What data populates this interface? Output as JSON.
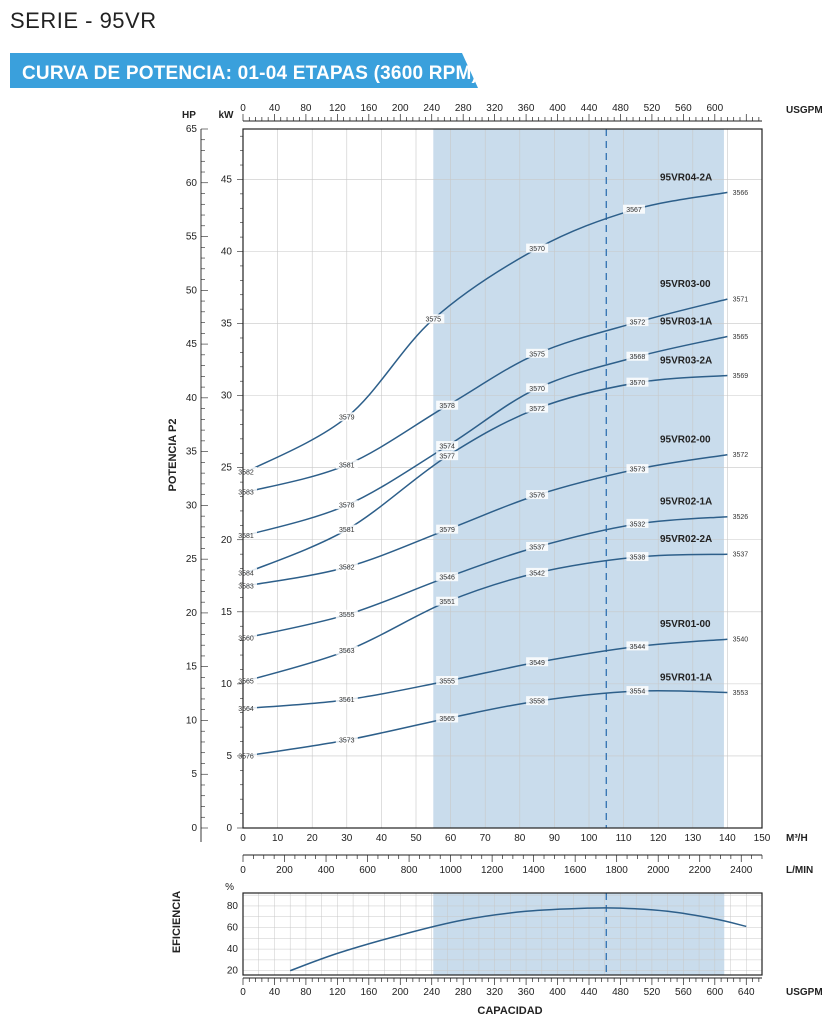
{
  "page": {
    "series_title": "SERIE - 95VR",
    "banner_title": "CURVA DE POTENCIA: 01-04 ETAPAS (3600 RPM)",
    "colors": {
      "banner": "#3aa0dc",
      "curve": "#2d5f8a",
      "band": "#c9dcec",
      "line": "#222222"
    }
  },
  "chart_data": [
    {
      "type": "line",
      "id": "power",
      "x_usgpm": {
        "label": "USGPM",
        "ticks": [
          0,
          40,
          80,
          120,
          160,
          200,
          240,
          280,
          320,
          360,
          400,
          440,
          480,
          520,
          560,
          600
        ],
        "range": [
          0,
          660
        ]
      },
      "x_m3h": {
        "label": "M³/H",
        "ticks": [
          0,
          10,
          20,
          30,
          40,
          50,
          60,
          70,
          80,
          90,
          100,
          110,
          120,
          130,
          140,
          150
        ],
        "range": [
          0,
          150
        ]
      },
      "x_lmin": {
        "label": "L/MIN",
        "ticks": [
          0,
          200,
          400,
          600,
          800,
          1000,
          1200,
          1400,
          1600,
          1800,
          2000,
          2200,
          2400
        ],
        "range": [
          0,
          2500
        ]
      },
      "y_hp": {
        "label": "HP",
        "ticks": [
          0,
          5,
          10,
          15,
          20,
          25,
          30,
          35,
          40,
          45,
          50,
          55,
          60,
          65
        ],
        "range": [
          0,
          65
        ]
      },
      "y_kw": {
        "label": "kW",
        "ticks": [
          0,
          5,
          10,
          15,
          20,
          25,
          30,
          35,
          40,
          45
        ],
        "range": [
          0,
          48.5
        ]
      },
      "ylabel": "POTENCIA P2",
      "band_m3h": [
        55,
        139
      ],
      "marker_m3h": 105,
      "series": [
        {
          "name": "95VR04-2A",
          "x": [
            0,
            30,
            55,
            85,
            113,
            140
          ],
          "y": [
            24.7,
            28.5,
            35.3,
            40.2,
            42.9,
            44.1
          ],
          "labels": [
            "3582",
            "3579",
            "3575",
            "3570",
            "3567",
            "3566"
          ]
        },
        {
          "name": "95VR03-00",
          "x": [
            0,
            30,
            59,
            85,
            114,
            140
          ],
          "y": [
            23.3,
            25.2,
            29.3,
            32.9,
            35.1,
            36.7
          ],
          "labels": [
            "3583",
            "3581",
            "3578",
            "3575",
            "3572",
            "3571"
          ]
        },
        {
          "name": "95VR03-1A",
          "x": [
            0,
            30,
            59,
            85,
            114,
            140
          ],
          "y": [
            20.3,
            22.4,
            26.5,
            30.5,
            32.7,
            34.1
          ],
          "labels": [
            "3581",
            "3578",
            "3574",
            "3570",
            "3568",
            "3565"
          ]
        },
        {
          "name": "95VR03-2A",
          "x": [
            0,
            30,
            59,
            85,
            114,
            140
          ],
          "y": [
            17.7,
            20.7,
            25.8,
            29.1,
            30.9,
            31.4
          ],
          "labels": [
            "3584",
            "3581",
            "3577",
            "3572",
            "3570",
            "3569"
          ]
        },
        {
          "name": "95VR02-00",
          "x": [
            0,
            30,
            59,
            85,
            114,
            140
          ],
          "y": [
            16.8,
            18.1,
            20.7,
            23.1,
            24.9,
            25.9
          ],
          "labels": [
            "3583",
            "3582",
            "3579",
            "3576",
            "3573",
            "3572"
          ]
        },
        {
          "name": "95VR02-1A",
          "x": [
            0,
            30,
            59,
            85,
            114,
            140
          ],
          "y": [
            13.2,
            14.8,
            17.4,
            19.5,
            21.1,
            21.6
          ],
          "labels": [
            "3560",
            "3555",
            "3546",
            "3537",
            "3532",
            "3526"
          ]
        },
        {
          "name": "95VR02-2A",
          "x": [
            0,
            30,
            59,
            85,
            114,
            140
          ],
          "y": [
            10.2,
            12.3,
            15.7,
            17.7,
            18.8,
            19.0
          ],
          "labels": [
            "3565",
            "3563",
            "3551",
            "3542",
            "3538",
            "3537"
          ]
        },
        {
          "name": "95VR01-00",
          "x": [
            0,
            30,
            59,
            85,
            114,
            140
          ],
          "y": [
            8.3,
            8.9,
            10.2,
            11.5,
            12.6,
            13.1
          ],
          "labels": [
            "3564",
            "3561",
            "3555",
            "3549",
            "3544",
            "3540"
          ]
        },
        {
          "name": "95VR01-1A",
          "x": [
            0,
            30,
            59,
            85,
            114,
            140
          ],
          "y": [
            5.0,
            6.1,
            7.6,
            8.8,
            9.5,
            9.4
          ],
          "labels": [
            "3576",
            "3573",
            "3565",
            "3558",
            "3554",
            "3553"
          ]
        }
      ],
      "curve_labels": [
        "95VR04-2A",
        "95VR03-00",
        "95VR03-1A",
        "95VR03-2A",
        "95VR02-00",
        "95VR02-1A",
        "95VR02-2A",
        "95VR01-00",
        "95VR01-1A"
      ]
    },
    {
      "type": "line",
      "id": "efficiency",
      "ylabel": "EFICIENCIA",
      "y_unit": "%",
      "y_ticks": [
        20,
        40,
        60,
        80
      ],
      "y_range": [
        16,
        92
      ],
      "x_usgpm": {
        "label": "USGPM",
        "ticks": [
          0,
          40,
          80,
          120,
          160,
          200,
          240,
          280,
          320,
          360,
          400,
          440,
          480,
          520,
          560,
          600,
          640
        ],
        "range": [
          0,
          660
        ]
      },
      "xlabel": "CAPACIDAD",
      "band_usgpm": [
        242,
        612
      ],
      "marker_usgpm": 462,
      "series": [
        {
          "name": "",
          "x": [
            60,
            120,
            200,
            280,
            360,
            440,
            480,
            540,
            600,
            640
          ],
          "y": [
            20,
            36,
            53,
            67,
            75,
            78,
            78,
            75,
            68,
            61
          ]
        }
      ]
    }
  ]
}
